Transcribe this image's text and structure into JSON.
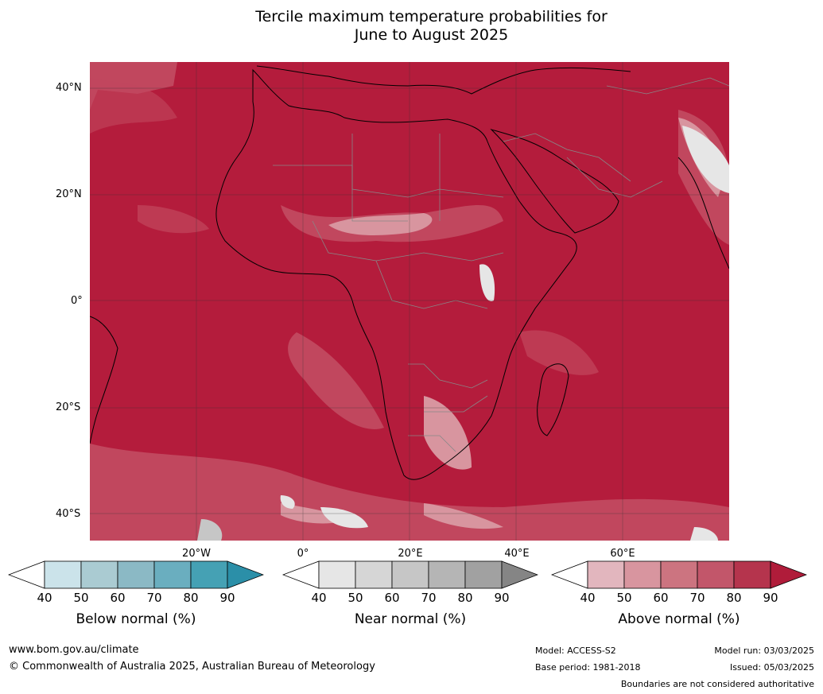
{
  "title": {
    "line1": "Tercile maximum temperature probabilities for",
    "line2": "June to August 2025"
  },
  "map": {
    "region": "Africa",
    "lat_labels": [
      "40°N",
      "20°N",
      "0°",
      "20°S",
      "40°S"
    ],
    "lon_labels": [
      "20°W",
      "0°",
      "20°E",
      "40°E",
      "60°E"
    ],
    "dominant_category": "Above normal",
    "colors": {
      "ocean_dominant": "#b41c3c",
      "land_border": "#888888",
      "coast": "#000000",
      "grid": "#333333"
    }
  },
  "legends": [
    {
      "label": "Below normal (%)",
      "ticks": [
        "40",
        "50",
        "60",
        "70",
        "80",
        "90"
      ],
      "colors": [
        "#ffffff",
        "#cbe3ea",
        "#aacbd2",
        "#8bb9c5",
        "#6aaebf",
        "#45a1b4",
        "#2b8fa8"
      ]
    },
    {
      "label": "Near normal (%)",
      "ticks": [
        "40",
        "50",
        "60",
        "70",
        "80",
        "90"
      ],
      "colors": [
        "#ffffff",
        "#e6e6e6",
        "#d6d6d6",
        "#c6c6c6",
        "#b5b5b5",
        "#a1a1a1",
        "#858585"
      ]
    },
    {
      "label": "Above normal (%)",
      "ticks": [
        "40",
        "50",
        "60",
        "70",
        "80",
        "90"
      ],
      "colors": [
        "#ffffff",
        "#e2b6be",
        "#d8959f",
        "#cc7480",
        "#c2566a",
        "#b5344d",
        "#b01c3a"
      ]
    }
  ],
  "footer": {
    "website": "www.bom.gov.au/climate",
    "copyright": "© Commonwealth of Australia 2025, Australian Bureau of Meteorology",
    "model": "Model: ACCESS-S2",
    "base_period": "Base period: 1981-2018",
    "model_run": "Model run: 03/03/2025",
    "issued": "Issued: 05/03/2025",
    "disclaimer": "Boundaries are not considered authoritative"
  }
}
